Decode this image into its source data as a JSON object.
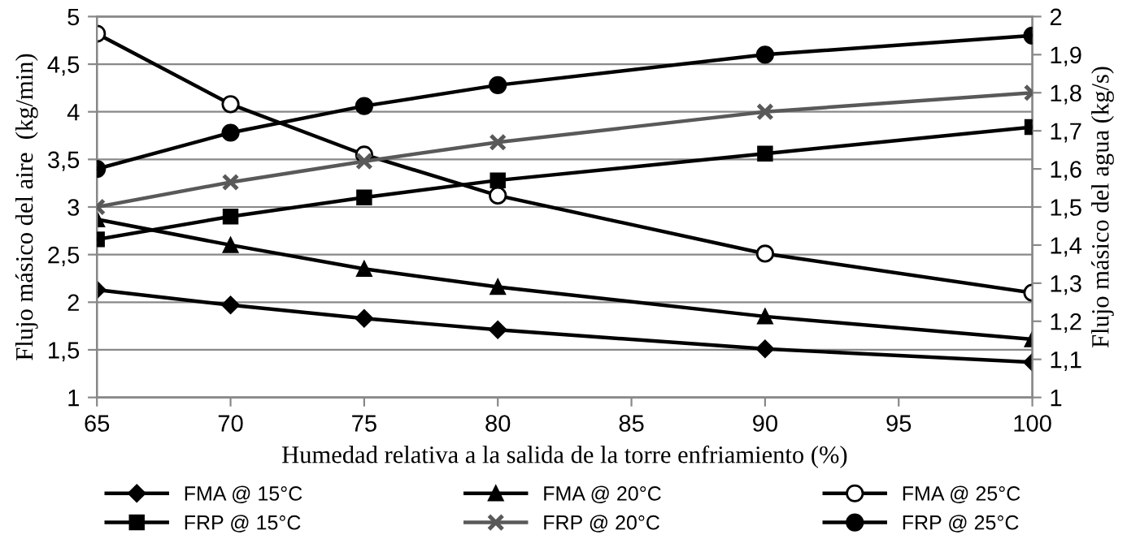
{
  "chart_data": {
    "type": "line",
    "xlabel": "Humedad relativa a la salida de la torre enfriamiento (%)",
    "ylabel": "Flujo másico del aire  (kg/min)",
    "y2label": "Flujo másico del agua (kg/s)",
    "x": [
      65,
      70,
      75,
      80,
      90,
      100
    ],
    "xlim": [
      65,
      100
    ],
    "xticks": [
      65,
      70,
      75,
      80,
      85,
      90,
      95,
      100
    ],
    "ylim": [
      1,
      5
    ],
    "yticks": [
      1,
      {
        "value": 1.5,
        "label": "1,5"
      },
      2,
      {
        "value": 2.5,
        "label": "2,5"
      },
      3,
      {
        "value": 3.5,
        "label": "3,5"
      },
      4,
      {
        "value": 4.5,
        "label": "4,5"
      },
      5
    ],
    "y2lim": [
      1,
      2
    ],
    "y2ticks": [
      1,
      {
        "value": 1.1,
        "label": "1,1"
      },
      {
        "value": 1.2,
        "label": "1,2"
      },
      {
        "value": 1.3,
        "label": "1,3"
      },
      {
        "value": 1.4,
        "label": "1,4"
      },
      {
        "value": 1.5,
        "label": "1,5"
      },
      {
        "value": 1.6,
        "label": "1,6"
      },
      {
        "value": 1.7,
        "label": "1,7"
      },
      {
        "value": 1.8,
        "label": "1,8"
      },
      {
        "value": 1.9,
        "label": "1,9"
      },
      2
    ],
    "grid": "y",
    "legend": "bottom",
    "series": [
      {
        "name": "FMA @ 15°C",
        "color": "#000000",
        "marker": "diamond",
        "values": [
          2.13,
          1.97,
          1.83,
          1.71,
          1.51,
          1.37
        ]
      },
      {
        "name": "FRP @ 15°C",
        "color": "#000000",
        "marker": "square",
        "axis": "y2",
        "values": [
          1.415,
          1.475,
          1.525,
          1.57,
          1.64,
          1.71
        ]
      },
      {
        "name": "FMA @ 20°C",
        "color": "#000000",
        "marker": "triangle",
        "values": [
          2.87,
          2.6,
          2.35,
          2.16,
          1.85,
          1.61
        ]
      },
      {
        "name": "FRP @ 20°C",
        "color": "#595959",
        "marker": "cross",
        "axis": "y2",
        "values": [
          1.5,
          1.565,
          1.62,
          1.67,
          1.75,
          1.8
        ]
      },
      {
        "name": "FMA @ 25°C",
        "color": "#000000",
        "marker": "dotted circle",
        "values": [
          4.82,
          4.08,
          3.55,
          3.12,
          2.51,
          2.1
        ]
      },
      {
        "name": "FRP @ 25°C",
        "color": "#000000",
        "marker": "circle",
        "axis": "y2",
        "values": [
          1.6,
          1.695,
          1.765,
          1.82,
          1.9,
          1.95
        ]
      }
    ]
  }
}
